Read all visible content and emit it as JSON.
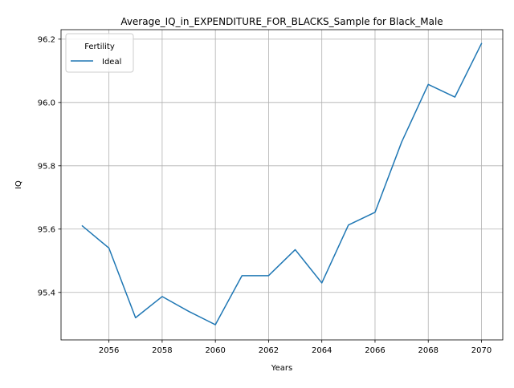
{
  "chart_data": {
    "type": "line",
    "title": "Average_IQ_in_EXPENDITURE_FOR_BLACKS_Sample for Black_Male",
    "xlabel": "Years",
    "ylabel": "IQ",
    "xlim": [
      2054.2,
      2070.8
    ],
    "ylim": [
      95.25,
      96.23
    ],
    "x_ticks": [
      2056,
      2058,
      2060,
      2062,
      2064,
      2066,
      2068,
      2070
    ],
    "y_ticks": [
      95.4,
      95.6,
      95.8,
      96.0,
      96.2
    ],
    "x_tick_labels": [
      "2056",
      "2058",
      "2060",
      "2062",
      "2064",
      "2066",
      "2068",
      "2070"
    ],
    "y_tick_labels": [
      "95.4",
      "95.6",
      "95.8",
      "96.0",
      "96.2"
    ],
    "grid": true,
    "legend": {
      "title": "Fertility",
      "placement": "upper-left"
    },
    "series": [
      {
        "name": "Ideal",
        "color": "#1f77b4",
        "x": [
          2055,
          2056,
          2057,
          2058,
          2059,
          2060,
          2061,
          2062,
          2063,
          2064,
          2065,
          2066,
          2067,
          2068,
          2069,
          2070
        ],
        "y": [
          95.61,
          95.54,
          95.32,
          95.387,
          95.34,
          95.298,
          95.453,
          95.453,
          95.535,
          95.43,
          95.613,
          95.653,
          95.875,
          96.057,
          96.017,
          96.186
        ]
      }
    ]
  }
}
